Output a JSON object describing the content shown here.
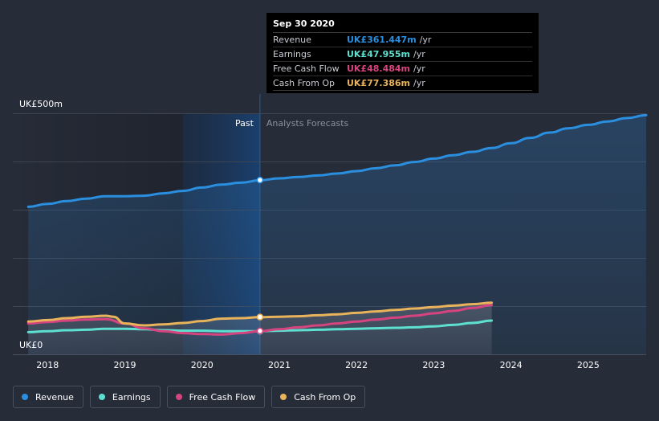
{
  "chart_data": {
    "type": "area",
    "title": "",
    "y_label_top": "UK£500m",
    "y_label_bottom": "UK£0",
    "ylim": [
      0,
      500
    ],
    "xlim": [
      2017.55,
      2025.75
    ],
    "x_ticks": [
      2018,
      2019,
      2020,
      2021,
      2022,
      2023,
      2024,
      2025
    ],
    "x_tick_labels": [
      "2018",
      "2019",
      "2020",
      "2021",
      "2022",
      "2023",
      "2024",
      "2025"
    ],
    "past_label": "Past",
    "forecast_label": "Analysts Forecasts",
    "divider_x": 2020.75,
    "highlight_start_x": 2019.75,
    "series": [
      {
        "name": "Revenue",
        "color": "#2b8fe0",
        "fill": true,
        "x": [
          2017.75,
          2018.0,
          2018.25,
          2018.5,
          2018.75,
          2019.0,
          2019.25,
          2019.5,
          2019.75,
          2020.0,
          2020.25,
          2020.5,
          2020.75,
          2021.0,
          2021.25,
          2021.5,
          2021.75,
          2022.0,
          2022.25,
          2022.5,
          2022.75,
          2023.0,
          2023.25,
          2023.5,
          2023.75,
          2024.0,
          2024.25,
          2024.5,
          2024.75,
          2025.0,
          2025.25,
          2025.5,
          2025.75
        ],
        "values": [
          306,
          312,
          318,
          323,
          328,
          328,
          329,
          334,
          339,
          346,
          352,
          356,
          361,
          365,
          368,
          371,
          375,
          380,
          386,
          392,
          399,
          406,
          413,
          420,
          428,
          438,
          449,
          460,
          469,
          476,
          483,
          490,
          496
        ]
      },
      {
        "name": "Earnings",
        "color": "#5ee0d0",
        "fill": false,
        "x": [
          2017.75,
          2018.0,
          2018.25,
          2018.5,
          2018.75,
          2019.0,
          2019.25,
          2019.5,
          2019.75,
          2020.0,
          2020.25,
          2020.5,
          2020.75,
          2021.0,
          2021.25,
          2021.5,
          2021.75,
          2022.0,
          2022.25,
          2022.5,
          2022.75,
          2023.0,
          2023.25,
          2023.5,
          2023.75
        ],
        "values": [
          46,
          48,
          50,
          51,
          53,
          53,
          52,
          50,
          49,
          49,
          48,
          48,
          48,
          49,
          50,
          51,
          52,
          53,
          54,
          55,
          56,
          58,
          61,
          65,
          70
        ]
      },
      {
        "name": "Free Cash Flow",
        "color": "#d6447f",
        "fill": false,
        "x": [
          2017.75,
          2018.0,
          2018.25,
          2018.5,
          2018.75,
          2019.0,
          2019.25,
          2019.5,
          2019.75,
          2020.0,
          2020.25,
          2020.5,
          2020.75,
          2021.0,
          2021.25,
          2021.5,
          2021.75,
          2022.0,
          2022.25,
          2022.5,
          2022.75,
          2023.0,
          2023.25,
          2023.5,
          2023.75
        ],
        "values": [
          64,
          67,
          70,
          72,
          73,
          64,
          54,
          48,
          44,
          42,
          41,
          44,
          48,
          52,
          56,
          60,
          64,
          68,
          72,
          76,
          80,
          85,
          90,
          96,
          102
        ]
      },
      {
        "name": "Cash From Op",
        "color": "#e8b35a",
        "fill": false,
        "x": [
          2017.75,
          2018.0,
          2018.25,
          2018.5,
          2018.75,
          2018.85,
          2019.0,
          2019.25,
          2019.5,
          2019.75,
          2020.0,
          2020.25,
          2020.5,
          2020.75,
          2021.0,
          2021.25,
          2021.5,
          2021.75,
          2022.0,
          2022.25,
          2022.5,
          2022.75,
          2023.0,
          2023.25,
          2023.5,
          2023.75
        ],
        "values": [
          68,
          71,
          75,
          78,
          80,
          78,
          64,
          60,
          62,
          65,
          69,
          74,
          75,
          77,
          78,
          79,
          81,
          83,
          86,
          89,
          92,
          95,
          98,
          101,
          104,
          107
        ]
      }
    ],
    "tooltip": {
      "x": 2020.75,
      "date": "Sep 30 2020",
      "rows": [
        {
          "name": "Revenue",
          "value": "UK£361.447m",
          "unit": "/yr",
          "color": "#2b8fe0",
          "y": 361.447
        },
        {
          "name": "Earnings",
          "value": "UK£47.955m",
          "unit": "/yr",
          "color": "#5ee0d0",
          "y": 47.955
        },
        {
          "name": "Free Cash Flow",
          "value": "UK£48.484m",
          "unit": "/yr",
          "color": "#d6447f",
          "y": 48.484
        },
        {
          "name": "Cash From Op",
          "value": "UK£77.386m",
          "unit": "/yr",
          "color": "#e8b35a",
          "y": 77.386
        }
      ]
    }
  },
  "legend": [
    {
      "label": "Revenue",
      "color": "#2b8fe0"
    },
    {
      "label": "Earnings",
      "color": "#5ee0d0"
    },
    {
      "label": "Free Cash Flow",
      "color": "#d6447f"
    },
    {
      "label": "Cash From Op",
      "color": "#e8b35a"
    }
  ]
}
